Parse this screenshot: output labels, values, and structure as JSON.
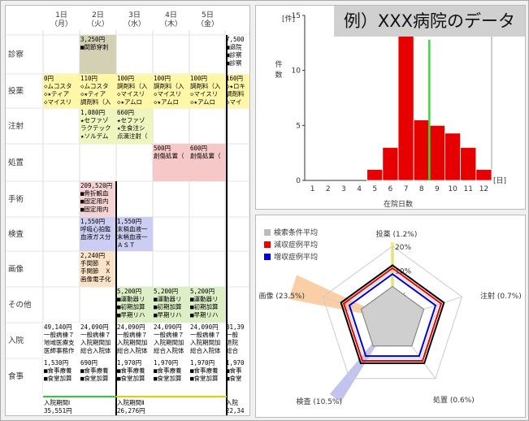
{
  "schedule": {
    "days": [
      {
        "date": "1日",
        "weekday": "（月）"
      },
      {
        "date": "2日",
        "weekday": "（火）"
      },
      {
        "date": "3日",
        "weekday": "（水）"
      },
      {
        "date": "4日",
        "weekday": "（木）"
      },
      {
        "date": "5日",
        "weekday": "（金）"
      }
    ],
    "categories": [
      "診察",
      "投薬",
      "注射",
      "処置",
      "手術",
      "検査",
      "画像",
      "その他",
      "入院",
      "食事"
    ],
    "cells": [
      {
        "col": 1,
        "y": 36,
        "h": 48,
        "bg": "#d4d0b4",
        "lines": [
          "3,250円",
          "■関節穿刺"
        ]
      },
      {
        "col": 5,
        "y": 36,
        "h": 48,
        "bg": "#ffffff",
        "lines": [
          "7,500",
          "■退院",
          "■診察",
          "■診察"
        ]
      },
      {
        "col": 0,
        "y": 84,
        "h": 42,
        "bg": "#fff7a8",
        "lines": [
          "0円",
          "◇ムコスタ",
          "◇★ティア",
          "◇マイスリ"
        ]
      },
      {
        "col": 1,
        "y": 84,
        "h": 42,
        "bg": "#fff7a8",
        "lines": [
          "110円",
          "◇ムコスタ",
          "◇★ティア",
          "調剤料（入"
        ]
      },
      {
        "col": 2,
        "y": 84,
        "h": 42,
        "bg": "#fff7a8",
        "lines": [
          "100円",
          "調剤料（入",
          "◇マイスリ",
          "◇★アムロ"
        ]
      },
      {
        "col": 3,
        "y": 84,
        "h": 42,
        "bg": "#fff7a8",
        "lines": [
          "100円",
          "調剤料（入",
          "◇マイスリ",
          "◇★アムロ"
        ]
      },
      {
        "col": 4,
        "y": 84,
        "h": 42,
        "bg": "#fff7a8",
        "lines": [
          "100円",
          "調剤料（入",
          "◇マイスリ",
          "◇★アムロ"
        ]
      },
      {
        "col": 5,
        "y": 84,
        "h": 42,
        "bg": "#fff7a8",
        "lines": [
          "160円",
          "◇★ロキ",
          "調剤料",
          "◇マイ"
        ]
      },
      {
        "col": 1,
        "y": 126,
        "h": 44,
        "bg": "#eef5bf",
        "lines": [
          "1,080円",
          "★セファゾ",
          "ラクテック",
          "★ソルデム"
        ]
      },
      {
        "col": 2,
        "y": 126,
        "h": 44,
        "bg": "#eef5bf",
        "lines": [
          "660円",
          "★セファゾ",
          "★生食注シ",
          "点滴注射（"
        ]
      },
      {
        "col": 3,
        "y": 170,
        "h": 46,
        "bg": "#f7c8c8",
        "lines": [
          "500円",
          "創傷処置（"
        ]
      },
      {
        "col": 4,
        "y": 170,
        "h": 46,
        "bg": "#f7c8c8",
        "lines": [
          "600円",
          "創傷処置（"
        ]
      },
      {
        "col": 1,
        "y": 216,
        "h": 44,
        "bg": "#f7d4d4",
        "lines": [
          "209,520円",
          "■骨折観血",
          "■固定用内",
          "■固定用内"
        ]
      },
      {
        "col": 1,
        "y": 260,
        "h": 42,
        "bg": "#cccdf2",
        "lines": [
          "1,550円",
          "呼吸心拍監",
          "血液ガス分"
        ]
      },
      {
        "col": 2,
        "y": 260,
        "h": 42,
        "bg": "#cccdf2",
        "lines": [
          "1,550円",
          "末梢血液一",
          "末梢血液一",
          "ＡＳＴ"
        ]
      },
      {
        "col": 1,
        "y": 302,
        "h": 44,
        "bg": "#fbe3c8",
        "lines": [
          "2,240円",
          "手関節　Ｘ",
          "手関節　Ｘ",
          "画像電子化"
        ]
      },
      {
        "col": 2,
        "y": 346,
        "h": 44,
        "bg": "#dcefc5",
        "lines": [
          "5,200円",
          "■運動器リ",
          "■初期加算",
          "■早期リハ"
        ]
      },
      {
        "col": 3,
        "y": 346,
        "h": 44,
        "bg": "#dcefc5",
        "lines": [
          "5,200円",
          "■運動器リ",
          "■初期加算",
          "■早期リハ"
        ]
      },
      {
        "col": 4,
        "y": 346,
        "h": 44,
        "bg": "#dcefc5",
        "lines": [
          "5,200円",
          "■運動器リ",
          "■初期加算",
          "■早期リハ"
        ]
      },
      {
        "col": 0,
        "y": 390,
        "h": 44,
        "bg": "#ffffff",
        "lines": [
          "49,140円",
          "一般病棟７",
          "地域医療支",
          "医師事務作"
        ]
      },
      {
        "col": 1,
        "y": 390,
        "h": 44,
        "bg": "#ffffff",
        "lines": [
          "24,090円",
          "一般病棟７",
          "入院期間加",
          "総合入院体"
        ]
      },
      {
        "col": 2,
        "y": 390,
        "h": 44,
        "bg": "#ffffff",
        "lines": [
          "24,090円",
          "一般病棟７",
          "入院期間加",
          "総合入院体"
        ]
      },
      {
        "col": 3,
        "y": 390,
        "h": 44,
        "bg": "#ffffff",
        "lines": [
          "24,090円",
          "一般病棟７",
          "入院期間加",
          "総合入院体"
        ]
      },
      {
        "col": 4,
        "y": 390,
        "h": 44,
        "bg": "#ffffff",
        "lines": [
          "24,090円",
          "一般病棟７",
          "入院期間加",
          "総合入院体"
        ]
      },
      {
        "col": 5,
        "y": 390,
        "h": 44,
        "bg": "#ffffff",
        "lines": [
          "31,39",
          "一般",
          "退院",
          "総合"
        ]
      },
      {
        "col": 0,
        "y": 434,
        "h": 44,
        "bg": "#ffffff",
        "lines": [
          "1,530円",
          "■食事療養",
          "■食堂加算"
        ]
      },
      {
        "col": 1,
        "y": 434,
        "h": 44,
        "bg": "#ffffff",
        "lines": [
          "690円",
          "■食事療養",
          "■食堂加算"
        ]
      },
      {
        "col": 2,
        "y": 434,
        "h": 44,
        "bg": "#ffffff",
        "lines": [
          "1,970円",
          "■食事療養",
          "■食堂加算"
        ]
      },
      {
        "col": 3,
        "y": 434,
        "h": 44,
        "bg": "#ffffff",
        "lines": [
          "1,970円",
          "■食事療養",
          "■食堂加算"
        ]
      },
      {
        "col": 4,
        "y": 434,
        "h": 44,
        "bg": "#ffffff",
        "lines": [
          "1,970円",
          "■食事療養",
          "■食堂加算"
        ]
      },
      {
        "col": 5,
        "y": 434,
        "h": 44,
        "bg": "#ffffff",
        "lines": [
          "1,970",
          "■食事",
          "■食堂"
        ]
      }
    ],
    "footer": [
      {
        "col": 0,
        "lines": [
          "入院期間Ⅰ",
          "35,551円"
        ]
      },
      {
        "col": 2,
        "lines": [
          "入院期間Ⅱ",
          "26,276円"
        ]
      },
      {
        "col": 5,
        "lines": [
          "入院",
          "22,34"
        ]
      }
    ]
  },
  "banner": "例）XXX病院のデータ",
  "hist": {
    "unit_y": "[件]",
    "unit_x": "[日]",
    "ylabel": "件数",
    "xlabel": "在院日数"
  },
  "chart_data": [
    {
      "type": "bar",
      "x": [
        1,
        2,
        3,
        4,
        5,
        6,
        7,
        8,
        9,
        10,
        11,
        12
      ],
      "values": [
        0,
        0,
        0,
        0,
        1,
        3,
        14,
        5.5,
        5,
        4.3,
        3,
        1
      ],
      "highlight_x": 8.5,
      "ylim": [
        0,
        15
      ],
      "yticks": [
        0,
        5,
        10,
        15
      ],
      "xlabel": "在院日数",
      "ylabel": "件数",
      "colors": {
        "bar": "#e60000",
        "highlight": "#33dd33"
      }
    },
    {
      "type": "radar",
      "axes": [
        "投薬 (1.2%)",
        "注射 (0.7%)",
        "処置 (0.6%)",
        "検査 (10.5%)",
        "画像 (23.5%)"
      ],
      "ticks": [
        "0%",
        "10%",
        "20%"
      ],
      "series": [
        {
          "name": "検索条件平均",
          "values": [
            0.45,
            0.45,
            0.45,
            0.45,
            0.45
          ],
          "color": "#bbbbbb"
        },
        {
          "name": "減収症例平均",
          "values": [
            0.7,
            0.7,
            0.7,
            0.7,
            0.7
          ],
          "color": "#ee0000"
        },
        {
          "name": "増収症例平均",
          "values": [
            0.62,
            0.62,
            0.62,
            0.62,
            0.62
          ],
          "color": "#0000dd"
        }
      ],
      "highlight_colors": {
        "投薬": "#f5ef70",
        "画像": "#f9c796",
        "検査": "#b9b9f0"
      }
    }
  ]
}
